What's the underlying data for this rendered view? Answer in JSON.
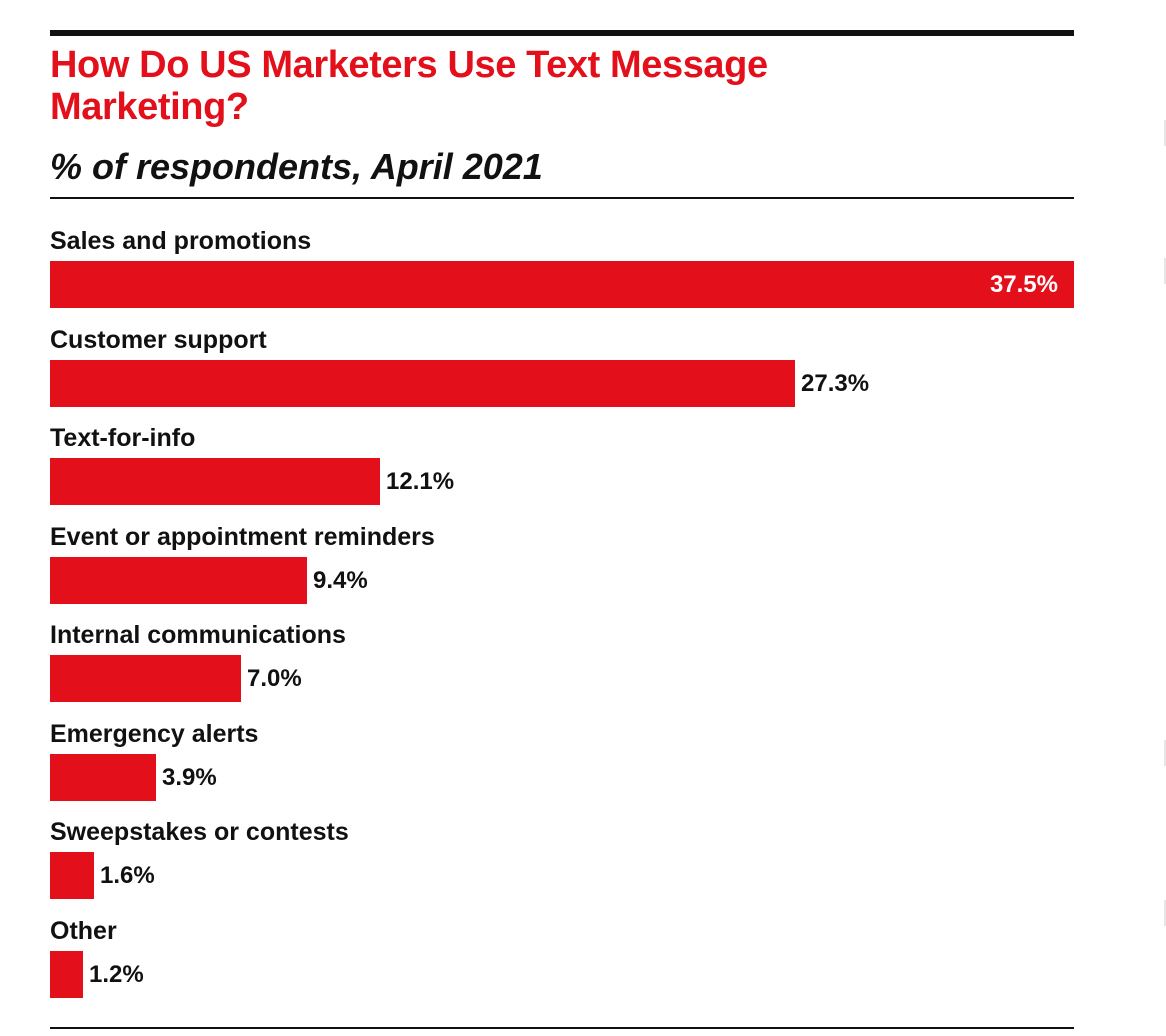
{
  "colors": {
    "bar": "#e30f1a",
    "title": "#e30f1a",
    "text": "#111111",
    "value_inside": "#ffffff"
  },
  "chart_data": {
    "type": "bar",
    "orientation": "horizontal",
    "title": "How Do US Marketers Use Text Message Marketing?",
    "subtitle": "% of respondents, April 2021",
    "categories": [
      "Sales and promotions",
      "Customer support",
      "Text-for-info",
      "Event or appointment reminders",
      "Internal communications",
      "Emergency alerts",
      "Sweepstakes or contests",
      "Other"
    ],
    "values": [
      37.5,
      27.3,
      12.1,
      9.4,
      7.0,
      3.9,
      1.6,
      1.2
    ],
    "value_labels": [
      "37.5%",
      "27.3%",
      "12.1%",
      "9.4%",
      "7.0%",
      "3.9%",
      "1.6%",
      "1.2%"
    ],
    "xlim": [
      0,
      37.5
    ],
    "grid": false,
    "legend": "none"
  }
}
